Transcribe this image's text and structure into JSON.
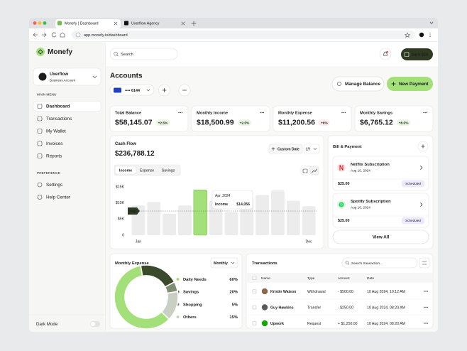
{
  "browser": {
    "tabs": [
      "Monefy | Dashboard",
      "Uxerflow Agency"
    ],
    "url": "app.monefy.io/dashboard"
  },
  "sidebar": {
    "brand": "Monefy",
    "account_name": "Uxerflow",
    "account_type": "Business Account",
    "main_menu_title": "MAIN MENU",
    "main_menu": [
      "Dashboard",
      "Transactions",
      "My Wallet",
      "Invoices",
      "Reports"
    ],
    "preference_title": "PREFERENCE",
    "preference_menu": [
      "Settings",
      "Help Center"
    ],
    "dark_mode": "Dark Mode"
  },
  "header": {
    "search_placeholder": "Search",
    "earn_button": "Earn $10"
  },
  "accounts": {
    "title": "Accounts",
    "card_number": "•••• 6144",
    "manage_balance": "Manage Balance",
    "new_payment": "New Payment"
  },
  "summary_cards": [
    {
      "label": "Total Balance",
      "value": "$58,145.07",
      "change": "+2.5%",
      "change_color": "#3d8f2c"
    },
    {
      "label": "Monthly Income",
      "value": "$18,500.99",
      "change": "+2.5%",
      "change_color": "#3d8f2c"
    },
    {
      "label": "Monthly Expense",
      "value": "$11,200.56",
      "change": "+6%",
      "change_color": "#d9363e"
    },
    {
      "label": "Monthly Savings",
      "value": "$6,765.12",
      "change": "+8.5%",
      "change_color": "#3d8f2c"
    }
  ],
  "cash_flow": {
    "title": "Cash Flow",
    "total": "$236,788.12",
    "custom_date": "Custom Date",
    "period": "1Y",
    "tabs": [
      "Income",
      "Expense",
      "Savings"
    ]
  },
  "bill_payment": {
    "title": "Bill & Payment",
    "bills": [
      {
        "name": "Netflix Subscription",
        "date": "Aug 15, 2024",
        "amount": "$25.00",
        "status": "Scheduled"
      },
      {
        "name": "Spotify Subscription",
        "date": "Aug 16, 2024",
        "amount": "$25.00",
        "status": "Scheduled"
      }
    ],
    "view_all": "View All"
  },
  "monthly_expense": {
    "title": "Monthly Expense",
    "period": "Monthly"
  },
  "transactions": {
    "title": "Transactions",
    "search_placeholder": "Search transaction...",
    "columns": [
      "Name",
      "Type",
      "Amount",
      "Date"
    ],
    "rows": [
      [
        "Kristin Watson",
        "Withdrawal",
        "- $500.00",
        "10 Aug 2024, 10:12 AM"
      ],
      [
        "Guy Hawkins",
        "Transfer",
        "- $250.00",
        "10 Aug 2024, 08:20 AM"
      ],
      [
        "Upwork",
        "Request",
        "+ $1,250.00",
        "10 Aug 2024, 08:20 AM"
      ]
    ]
  },
  "chart_data": [
    {
      "type": "bar",
      "categories": [
        "Jan",
        null,
        null,
        null,
        null,
        null,
        null,
        null,
        null,
        null,
        null,
        "Dec"
      ],
      "values": [
        9200,
        10300,
        6700,
        9200,
        14056,
        10700,
        7200,
        11600,
        12500,
        13900,
        10700,
        9000
      ],
      "colors": [
        "#ececec",
        "#ececec",
        "#ececec",
        "#ececec",
        "#a3e07a",
        "#ececec",
        "#ececec",
        "#ececec",
        "#ececec",
        "#ececec",
        "#ececec",
        "#ececec"
      ],
      "ylim": [
        0,
        15000
      ],
      "yticks": [
        0,
        {
          "value": 5000,
          "label": "$5K"
        },
        {
          "value": 10000,
          "label": "$10K"
        },
        {
          "value": 15000,
          "label": "$15K"
        }
      ],
      "average": 7500,
      "average_label": "Avg",
      "tooltip": {
        "date": "Apr, 2024",
        "label": "Income",
        "value": "$14,056"
      }
    },
    {
      "type": "donut",
      "categories": [
        "Daily Needs",
        "Savings",
        "Shopping",
        "Others"
      ],
      "values": [
        60,
        20,
        5,
        15
      ],
      "value_labels": [
        "60%",
        "20%",
        "5%",
        "15%"
      ],
      "colors": [
        "#a3e07a",
        "#3b4a2c",
        "#7f8f72",
        "#c9cfc2"
      ]
    }
  ]
}
